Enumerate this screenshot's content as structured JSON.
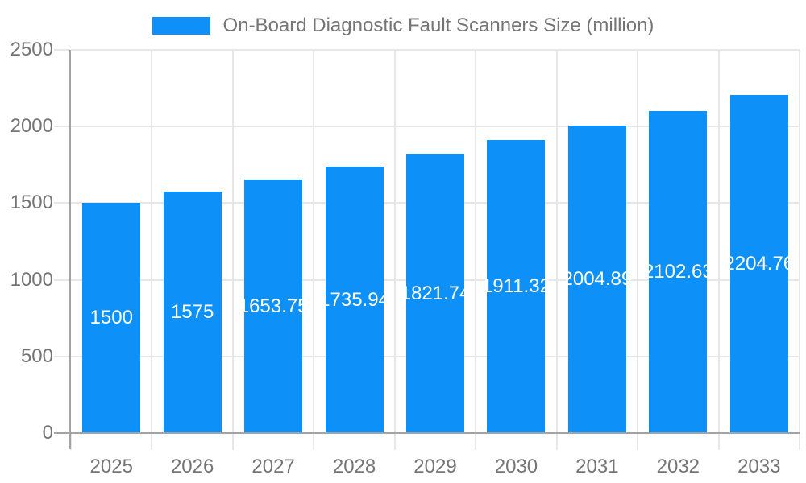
{
  "legend": {
    "label": "On-Board Diagnostic Fault Scanners Size (million)"
  },
  "chart_data": {
    "type": "bar",
    "title": "On-Board Diagnostic Fault Scanners Size (million)",
    "categories": [
      "2025",
      "2026",
      "2027",
      "2028",
      "2029",
      "2030",
      "2031",
      "2032",
      "2033"
    ],
    "values": [
      1500,
      1575,
      1653.75,
      1735.94,
      1821.74,
      1911.32,
      2004.89,
      2102.63,
      2204.76
    ],
    "xlabel": "",
    "ylabel": "",
    "ylim": [
      0,
      2500
    ],
    "yticks": [
      0,
      500,
      1000,
      1500,
      2000,
      2500
    ],
    "grid": true,
    "legend_position": "top",
    "value_labels_inside_bars": true,
    "colors": {
      "bar": "#0d90f8",
      "grid": "#e7e7e7",
      "axis": "#a3a3a3",
      "tick_text": "#757575",
      "value_text": "#ffffff"
    }
  }
}
